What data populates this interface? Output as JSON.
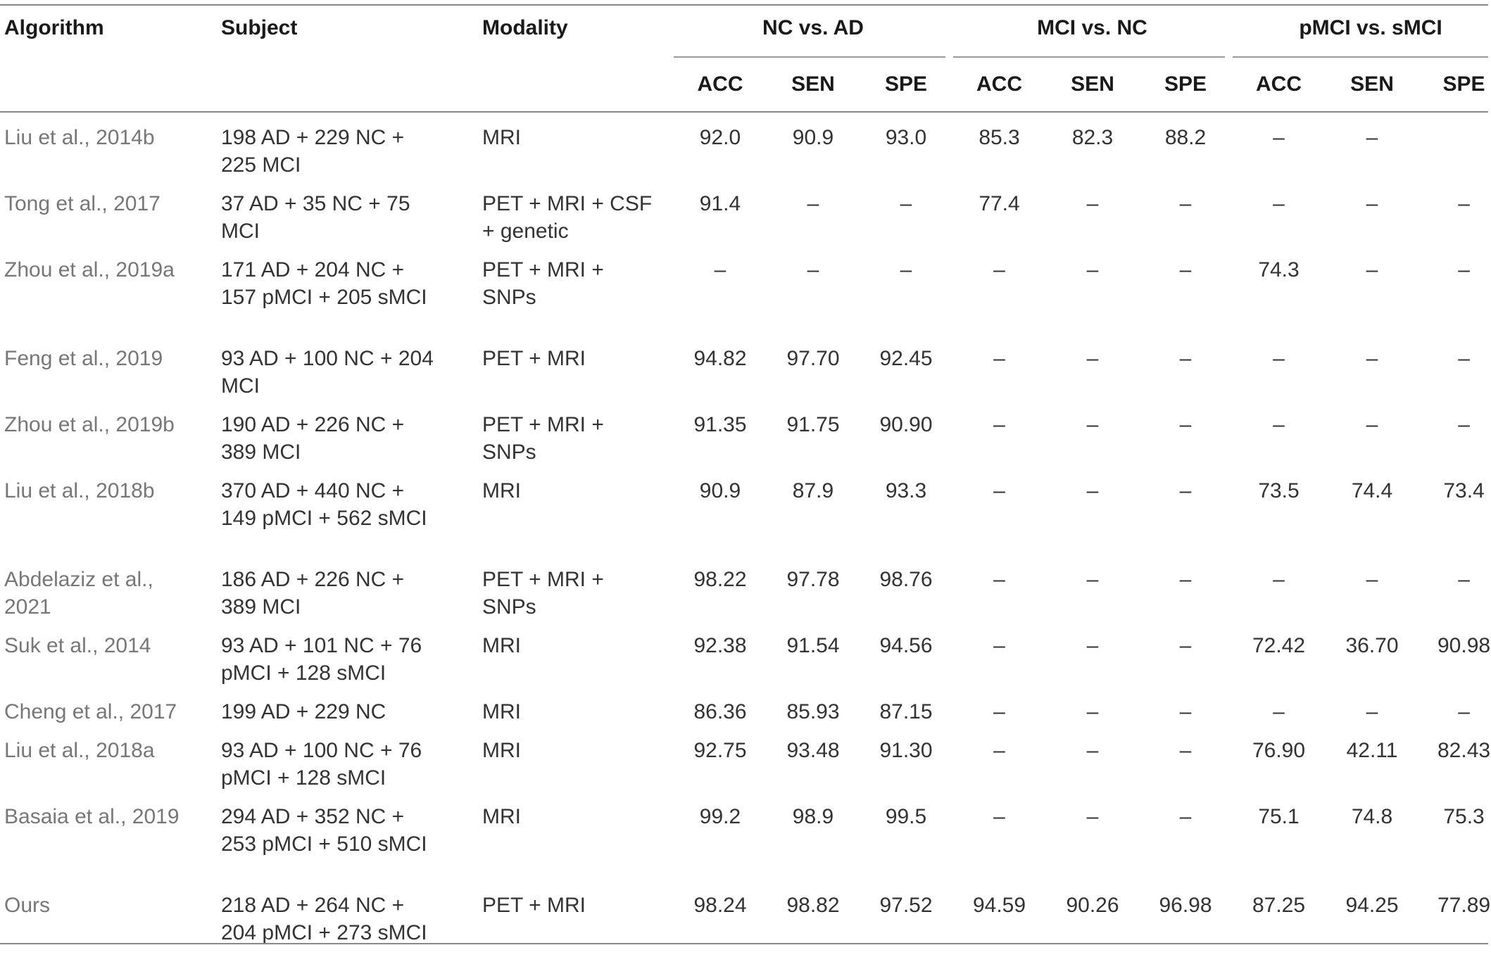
{
  "columns": {
    "algorithm": "Algorithm",
    "subject": "Subject",
    "modality": "Modality",
    "groups": [
      "NC vs. AD",
      "MCI vs. NC",
      "pMCI vs. sMCI"
    ],
    "metrics": [
      "ACC",
      "SEN",
      "SPE"
    ]
  },
  "rows": [
    {
      "algorithm": "Liu et al., 2014b",
      "subject": "198 AD + 229 NC + 225 MCI",
      "modality": "MRI",
      "values": [
        "92.0",
        "90.9",
        "93.0",
        "85.3",
        "82.3",
        "88.2",
        "–",
        "–",
        ""
      ]
    },
    {
      "algorithm": "Tong et al., 2017",
      "subject": "37 AD + 35 NC + 75 MCI",
      "modality": "PET + MRI + CSF + genetic",
      "values": [
        "91.4",
        "–",
        "–",
        "77.4",
        "–",
        "–",
        "–",
        "–",
        "–"
      ]
    },
    {
      "algorithm": "Zhou et al., 2019a",
      "subject": "171 AD + 204 NC + 157 pMCI + 205 sMCI",
      "modality": "PET + MRI + SNPs",
      "values": [
        "–",
        "–",
        "–",
        "–",
        "–",
        "–",
        "74.3",
        "–",
        "–"
      ]
    },
    {
      "algorithm": "Feng et al., 2019",
      "subject": "93 AD + 100 NC + 204 MCI",
      "modality": "PET + MRI",
      "values": [
        "94.82",
        "97.70",
        "92.45",
        "–",
        "–",
        "–",
        "–",
        "–",
        "–"
      ]
    },
    {
      "algorithm": "Zhou et al., 2019b",
      "subject": "190 AD + 226 NC + 389 MCI",
      "modality": "PET + MRI + SNPs",
      "values": [
        "91.35",
        "91.75",
        "90.90",
        "–",
        "–",
        "–",
        "–",
        "–",
        "–"
      ]
    },
    {
      "algorithm": "Liu et al., 2018b",
      "subject": "370 AD + 440 NC + 149 pMCI + 562 sMCI",
      "modality": "MRI",
      "values": [
        "90.9",
        "87.9",
        "93.3",
        "–",
        "–",
        "–",
        "73.5",
        "74.4",
        "73.4"
      ]
    },
    {
      "algorithm": "Abdelaziz et al., 2021",
      "subject": "186 AD + 226 NC + 389 MCI",
      "modality": "PET + MRI + SNPs",
      "values": [
        "98.22",
        "97.78",
        "98.76",
        "–",
        "–",
        "–",
        "–",
        "–",
        "–"
      ]
    },
    {
      "algorithm": "Suk et al., 2014",
      "subject": "93 AD + 101 NC + 76 pMCI + 128 sMCI",
      "modality": "MRI",
      "values": [
        "92.38",
        "91.54",
        "94.56",
        "–",
        "–",
        "–",
        "72.42",
        "36.70",
        "90.98"
      ]
    },
    {
      "algorithm": "Cheng et al., 2017",
      "subject": "199 AD + 229 NC",
      "modality": "MRI",
      "values": [
        "86.36",
        "85.93",
        "87.15",
        "–",
        "–",
        "–",
        "–",
        "–",
        "–"
      ]
    },
    {
      "algorithm": "Liu et al., 2018a",
      "subject": "93 AD + 100 NC + 76 pMCI + 128 sMCI",
      "modality": "MRI",
      "values": [
        "92.75",
        "93.48",
        "91.30",
        "–",
        "–",
        "–",
        "76.90",
        "42.11",
        "82.43"
      ]
    },
    {
      "algorithm": "Basaia et al., 2019",
      "subject": "294 AD + 352 NC + 253 pMCI + 510 sMCI",
      "modality": "MRI",
      "values": [
        "99.2",
        "98.9",
        "99.5",
        "–",
        "–",
        "–",
        "75.1",
        "74.8",
        "75.3"
      ]
    },
    {
      "algorithm": "Ours",
      "subject": "218 AD + 264 NC + 204 pMCI + 273 sMCI",
      "modality": "PET + MRI",
      "values": [
        "98.24",
        "98.82",
        "97.52",
        "94.59",
        "90.26",
        "96.98",
        "87.25",
        "94.25",
        "77.89"
      ]
    }
  ]
}
